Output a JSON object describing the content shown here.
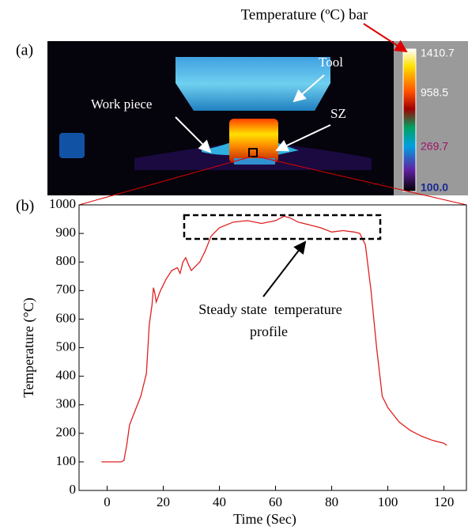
{
  "panel_a": {
    "label": "(a)",
    "bar_title": "Temperature (ºC) bar",
    "tool": "Tool",
    "sz": "SZ",
    "work_piece": "Work piece",
    "colorbar_labels": [
      "1410.7",
      "958.5",
      "269.7",
      "100.0"
    ]
  },
  "chart_data": {
    "type": "line",
    "panel_label": "(b)",
    "xlabel": "Time (Sec)",
    "ylabel": "Temperature (°C)",
    "annotation": [
      "Steady state  temperature",
      "profile"
    ],
    "color": "#e02020",
    "x": [
      -2,
      5,
      6,
      7,
      8,
      10,
      12,
      13,
      14,
      15,
      16,
      16.5,
      17,
      17.5,
      19,
      21,
      23,
      25,
      26,
      27,
      28,
      29,
      30,
      32,
      33,
      35,
      37,
      40,
      45,
      50,
      55,
      60,
      63,
      65,
      68,
      72,
      76,
      80,
      84,
      88,
      90,
      92,
      94,
      96,
      98,
      100,
      104,
      108,
      112,
      116,
      120,
      121
    ],
    "values": [
      100,
      100,
      105,
      160,
      230,
      280,
      330,
      370,
      410,
      580,
      650,
      710,
      690,
      660,
      700,
      740,
      770,
      780,
      760,
      800,
      815,
      790,
      770,
      790,
      800,
      840,
      890,
      920,
      940,
      945,
      935,
      945,
      960,
      955,
      940,
      930,
      920,
      905,
      910,
      905,
      900,
      860,
      700,
      500,
      330,
      290,
      240,
      210,
      190,
      175,
      165,
      158
    ],
    "xlim": [
      -10,
      128
    ],
    "ylim": [
      0,
      1000
    ],
    "xticks": [
      0,
      20,
      40,
      60,
      80,
      100,
      120
    ],
    "yticks": [
      0,
      100,
      200,
      300,
      400,
      500,
      600,
      700,
      800,
      900,
      1000
    ]
  }
}
